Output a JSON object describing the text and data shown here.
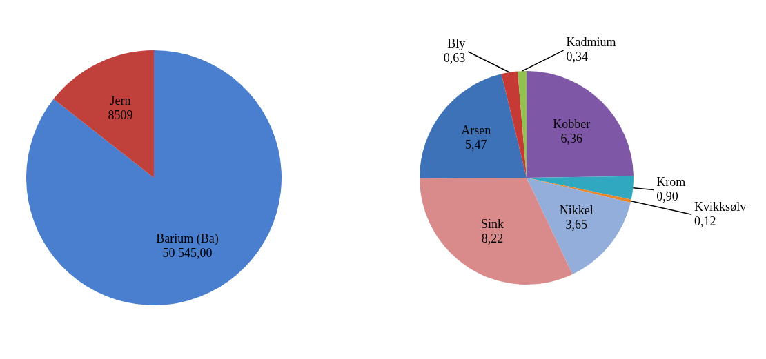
{
  "chart_data": [
    {
      "type": "pie",
      "categories": [
        "Barium (Ba)",
        "Jern"
      ],
      "values": [
        50545.0,
        8509
      ],
      "colors": [
        "#4a7fcf",
        "#c0403c"
      ],
      "value_labels": [
        "50 545,00",
        "8509"
      ]
    },
    {
      "type": "pie",
      "categories": [
        "Kobber",
        "Krom",
        "Kvikksølv",
        "Nikkel",
        "Sink",
        "Arsen",
        "Bly",
        "Kadmium"
      ],
      "values": [
        6.36,
        0.9,
        0.12,
        3.65,
        8.22,
        5.47,
        0.63,
        0.34
      ],
      "colors": [
        "#7e57a6",
        "#2fa8c0",
        "#e8862a",
        "#94aedb",
        "#d98b8b",
        "#3e72b8",
        "#c63a36",
        "#92c14d"
      ],
      "value_labels": [
        "6,36",
        "0,90",
        "0,12",
        "3,65",
        "8,22",
        "5,47",
        "0,63",
        "0,34"
      ]
    }
  ]
}
